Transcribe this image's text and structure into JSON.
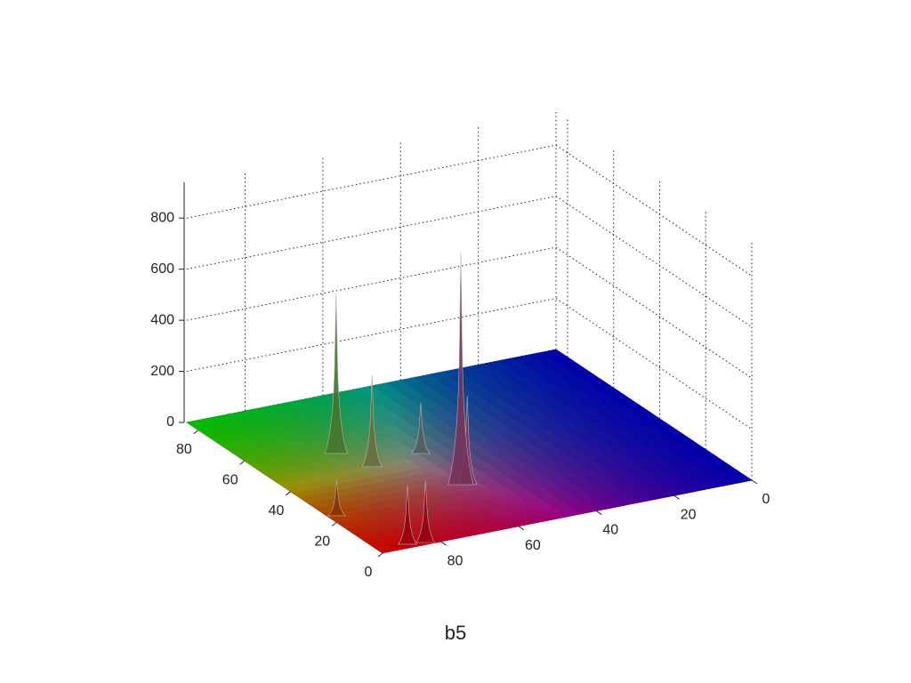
{
  "chart_data": {
    "type": "surface3d",
    "caption": "b5",
    "xlim": [
      0,
      85
    ],
    "xticks": [
      0,
      20,
      40,
      60,
      80
    ],
    "ylim": [
      0,
      95
    ],
    "yticks": [
      0,
      20,
      40,
      60,
      80
    ],
    "zlim": [
      0,
      940
    ],
    "zticks": [
      0,
      200,
      400,
      600,
      800
    ],
    "grid": true,
    "peaks": {
      "x": [
        54.6,
        26.6,
        44.4,
        46.2,
        1.1,
        2,
        23.3,
        26
      ],
      "y": [
        74.6,
        59.1,
        71.4,
        57.8,
        83.3,
        87.4,
        93,
        57.8
      ],
      "z": [
        626,
        910,
        358,
        200,
        243,
        233,
        139,
        348
      ]
    }
  }
}
